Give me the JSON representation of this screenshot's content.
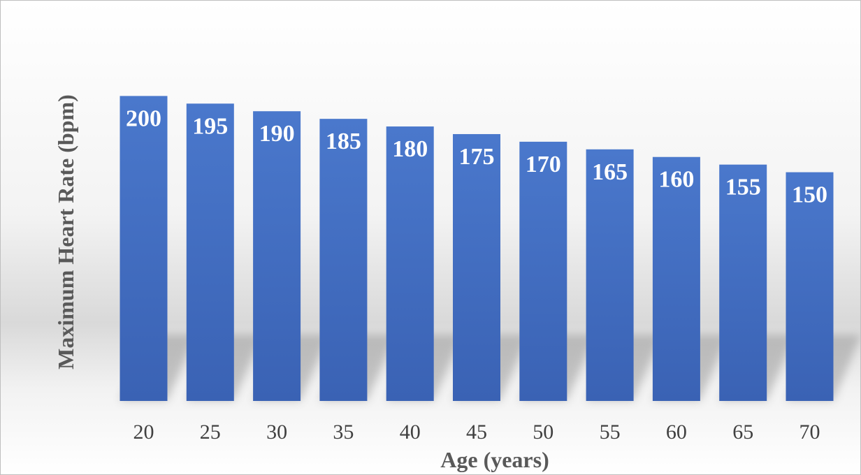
{
  "chart_data": {
    "type": "bar",
    "title": "",
    "xlabel": "Age (years)",
    "ylabel": "Maximum Heart Rate (bpm)",
    "categories": [
      "20",
      "25",
      "30",
      "35",
      "40",
      "45",
      "50",
      "55",
      "60",
      "65",
      "70"
    ],
    "series": [
      {
        "values": [
          200,
          195,
          190,
          185,
          180,
          175,
          170,
          165,
          160,
          155,
          150
        ]
      }
    ],
    "ylim": [
      0,
      210
    ],
    "grid": false,
    "legend": "none",
    "data_labels": true,
    "colors": {
      "bar": "#4472c4",
      "bar_dark": "#3a5fad",
      "label": "#ffffff"
    }
  }
}
